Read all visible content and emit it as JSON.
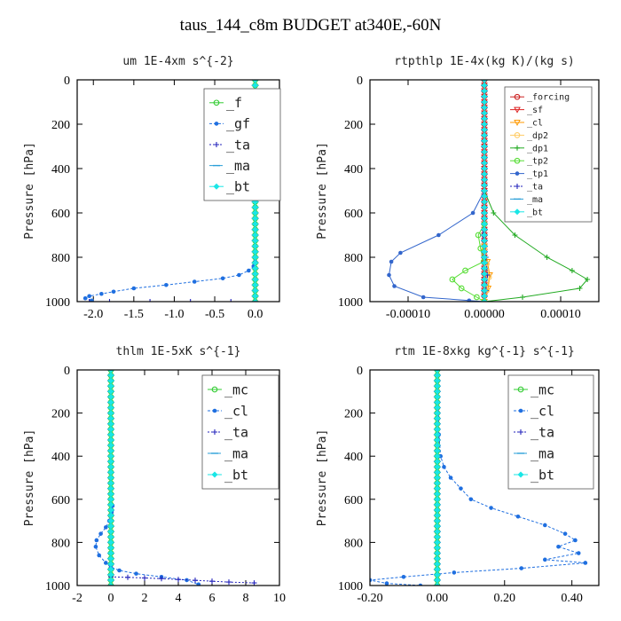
{
  "figure": {
    "title": "taus_144_c8m  BUDGET at340E,-60N"
  },
  "chart_data": [
    {
      "type": "line",
      "title": "um  1E-4xm s^{-2}",
      "ylabel": "Pressure [hPa]",
      "xlim": [
        -2.2,
        0.3
      ],
      "ylim": [
        1000,
        0
      ],
      "x_ticks": [
        -2.0,
        -1.5,
        -1.0,
        -0.5,
        0.0
      ],
      "x_tick_labels": [
        "-2.0",
        "-1.5",
        "-1.0",
        "-0.5",
        "0.0"
      ],
      "y_ticks": [
        0,
        200,
        400,
        600,
        800,
        1000
      ],
      "y_tick_labels": [
        "0",
        "200",
        "400",
        "600",
        "800",
        "1000"
      ],
      "legend": {
        "position": "top-right",
        "font_size": 15
      },
      "series": [
        {
          "name": "_f",
          "color": "#33cc33",
          "marker": "circle",
          "dash": "",
          "x": [
            0,
            0
          ],
          "y": [
            0,
            1000
          ]
        },
        {
          "name": "_gf",
          "color": "#1f6fe0",
          "marker": "dot",
          "dash": "3,2",
          "x": [
            0,
            0,
            0,
            -0.02,
            -0.08,
            -0.2,
            -0.4,
            -0.75,
            -1.1,
            -1.5,
            -1.75,
            -1.9,
            -2.05,
            -2.1,
            -2.02
          ],
          "y": [
            0,
            600,
            820,
            840,
            860,
            880,
            895,
            910,
            925,
            940,
            955,
            965,
            975,
            985,
            995
          ]
        },
        {
          "name": "_ta",
          "color": "#2222bb",
          "marker": "plus",
          "dash": "2,2",
          "x": [
            0,
            -0.3,
            -0.8,
            -1.3,
            -1.8,
            -2.05
          ],
          "y": [
            1000,
            1000,
            1000,
            1000,
            1000,
            1000
          ]
        },
        {
          "name": "_ma",
          "color": "#2a9fd8",
          "marker": "dash",
          "dash": "6,3",
          "x": [
            0,
            0
          ],
          "y": [
            0,
            1000
          ]
        },
        {
          "name": "_bt",
          "color": "#19e6e6",
          "marker": "diamond",
          "dash": "",
          "x": [
            0,
            0
          ],
          "y": [
            0,
            1000
          ]
        }
      ]
    },
    {
      "type": "line",
      "title": "rtpthlp  1E-4x(kg K)/(kg s)",
      "ylabel": "Pressure [hPa]",
      "xlim": [
        -0.00015,
        0.00015
      ],
      "ylim": [
        1000,
        0
      ],
      "x_ticks": [
        -0.0001,
        0,
        0.0001
      ],
      "x_tick_labels": [
        "-0.00010",
        "0.00000",
        "0.00010"
      ],
      "y_ticks": [
        0,
        200,
        400,
        600,
        800,
        1000
      ],
      "y_tick_labels": [
        "0",
        "200",
        "400",
        "600",
        "800",
        "1000"
      ],
      "legend": {
        "position": "top-right",
        "font_size": 10
      },
      "series": [
        {
          "name": "_forcing",
          "color": "#cc2222",
          "marker": "circle",
          "dash": "",
          "x": [
            0,
            0
          ],
          "y": [
            0,
            1000
          ]
        },
        {
          "name": "_sf",
          "color": "#dd2222",
          "marker": "tri",
          "dash": "",
          "x": [
            0,
            0
          ],
          "y": [
            0,
            1000
          ]
        },
        {
          "name": "_cl",
          "color": "#ff9900",
          "marker": "tri",
          "dash": "",
          "x": [
            0,
            4e-06,
            7e-06,
            5e-06,
            0
          ],
          "y": [
            750,
            820,
            880,
            940,
            1000
          ]
        },
        {
          "name": "_dp2",
          "color": "#ffcc66",
          "marker": "circle",
          "dash": "",
          "x": [
            0,
            3e-06,
            6e-06,
            3e-06,
            0
          ],
          "y": [
            760,
            830,
            890,
            950,
            1000
          ]
        },
        {
          "name": "_dp1",
          "color": "#22aa22",
          "marker": "plus",
          "dash": "",
          "x": [
            0,
            1.2e-05,
            4e-05,
            8.2e-05,
            0.000115,
            0.000135,
            0.000125,
            5e-05,
            0
          ],
          "y": [
            500,
            600,
            700,
            800,
            860,
            900,
            940,
            980,
            1000
          ]
        },
        {
          "name": "_tp2",
          "color": "#55dd33",
          "marker": "circle",
          "dash": "",
          "x": [
            0,
            -8e-06,
            -5e-06,
            -1e-06,
            -2.5e-05,
            -4.2e-05,
            -3e-05,
            -1e-05,
            0
          ],
          "y": [
            650,
            700,
            760,
            820,
            860,
            900,
            940,
            980,
            1000
          ]
        },
        {
          "name": "_tp1",
          "color": "#3366cc",
          "marker": "dot",
          "dash": "",
          "x": [
            0,
            -1.5e-05,
            -6e-05,
            -0.00011,
            -0.000122,
            -0.000125,
            -0.000118,
            -8e-05,
            -2e-05,
            0
          ],
          "y": [
            500,
            600,
            700,
            780,
            820,
            880,
            930,
            980,
            995,
            1000
          ]
        },
        {
          "name": "_ta",
          "color": "#2222bb",
          "marker": "plus",
          "dash": "2,2",
          "x": [
            0,
            -2e-06,
            2e-06,
            4e-06,
            2e-06,
            0
          ],
          "y": [
            600,
            700,
            800,
            880,
            950,
            1000
          ]
        },
        {
          "name": "_ma",
          "color": "#2a9fd8",
          "marker": "dash",
          "dash": "6,3",
          "x": [
            0,
            0
          ],
          "y": [
            0,
            1000
          ]
        },
        {
          "name": "_bt",
          "color": "#19e6e6",
          "marker": "diamond",
          "dash": "",
          "x": [
            0,
            0
          ],
          "y": [
            0,
            1000
          ]
        }
      ]
    },
    {
      "type": "line",
      "title": "thlm  1E-5xK s^{-1}",
      "ylabel": "Pressure [hPa]",
      "xlim": [
        -2,
        10
      ],
      "ylim": [
        1000,
        0
      ],
      "x_ticks": [
        -2,
        0,
        2,
        4,
        6,
        8,
        10
      ],
      "x_tick_labels": [
        "-2",
        "0",
        "2",
        "4",
        "6",
        "8",
        "10"
      ],
      "y_ticks": [
        0,
        200,
        400,
        600,
        800,
        1000
      ],
      "y_tick_labels": [
        "0",
        "200",
        "400",
        "600",
        "800",
        "1000"
      ],
      "legend": {
        "position": "top-right",
        "font_size": 15
      },
      "series": [
        {
          "name": "_mc",
          "color": "#33cc33",
          "marker": "circle",
          "dash": "",
          "x": [
            0,
            0
          ],
          "y": [
            0,
            1000
          ]
        },
        {
          "name": "_cl",
          "color": "#1f6fe0",
          "marker": "dot",
          "dash": "3,2",
          "x": [
            0,
            0,
            0.1,
            0.05,
            -0.1,
            -0.3,
            -0.6,
            -0.85,
            -0.9,
            -0.7,
            -0.3,
            0,
            0.5,
            1.5,
            3,
            4.5,
            5.2
          ],
          "y": [
            0,
            600,
            630,
            660,
            700,
            730,
            760,
            790,
            820,
            860,
            895,
            915,
            930,
            945,
            960,
            975,
            995
          ]
        },
        {
          "name": "_ta",
          "color": "#2222bb",
          "marker": "plus",
          "dash": "2,2",
          "x": [
            0,
            1,
            2,
            3,
            4,
            5,
            6,
            7,
            8.5
          ],
          "y": [
            960,
            962,
            965,
            968,
            972,
            976,
            980,
            984,
            988
          ]
        },
        {
          "name": "_ma",
          "color": "#2a9fd8",
          "marker": "dash",
          "dash": "6,3",
          "x": [
            0,
            0
          ],
          "y": [
            0,
            1000
          ]
        },
        {
          "name": "_bt",
          "color": "#19e6e6",
          "marker": "diamond",
          "dash": "",
          "x": [
            0,
            0
          ],
          "y": [
            0,
            1000
          ]
        }
      ]
    },
    {
      "type": "line",
      "title": "rtm  1E-8xkg kg^{-1} s^{-1}",
      "ylabel": "Pressure [hPa]",
      "xlim": [
        -0.2,
        0.48
      ],
      "ylim": [
        1000,
        0
      ],
      "x_ticks": [
        -0.2,
        0,
        0.2,
        0.4
      ],
      "x_tick_labels": [
        "-0.20",
        "0.00",
        "0.20",
        "0.40"
      ],
      "y_ticks": [
        0,
        200,
        400,
        600,
        800,
        1000
      ],
      "y_tick_labels": [
        "0",
        "200",
        "400",
        "600",
        "800",
        "1000"
      ],
      "legend": {
        "position": "top-right",
        "font_size": 15
      },
      "series": [
        {
          "name": "_mc",
          "color": "#33cc33",
          "marker": "circle",
          "dash": "",
          "x": [
            0,
            0
          ],
          "y": [
            0,
            1000
          ]
        },
        {
          "name": "_cl",
          "color": "#1f6fe0",
          "marker": "dot",
          "dash": "3,2",
          "x": [
            0,
            0.005,
            0.01,
            0.02,
            0.04,
            0.07,
            0.1,
            0.16,
            0.24,
            0.32,
            0.38,
            0.41,
            0.36,
            0.42,
            0.32,
            0.44,
            0.25,
            0.05,
            -0.1,
            -0.2,
            -0.15,
            -0.05
          ],
          "y": [
            0,
            300,
            400,
            450,
            500,
            550,
            600,
            640,
            680,
            720,
            760,
            790,
            820,
            850,
            880,
            895,
            920,
            940,
            960,
            975,
            990,
            1000
          ]
        },
        {
          "name": "_ta",
          "color": "#2222bb",
          "marker": "plus",
          "dash": "2,2",
          "x": [
            0,
            0
          ],
          "y": [
            0,
            1000
          ]
        },
        {
          "name": "_ma",
          "color": "#2a9fd8",
          "marker": "dash",
          "dash": "6,3",
          "x": [
            0,
            0
          ],
          "y": [
            0,
            1000
          ]
        },
        {
          "name": "_bt",
          "color": "#19e6e6",
          "marker": "diamond",
          "dash": "",
          "x": [
            0,
            0
          ],
          "y": [
            0,
            1000
          ]
        }
      ]
    }
  ]
}
